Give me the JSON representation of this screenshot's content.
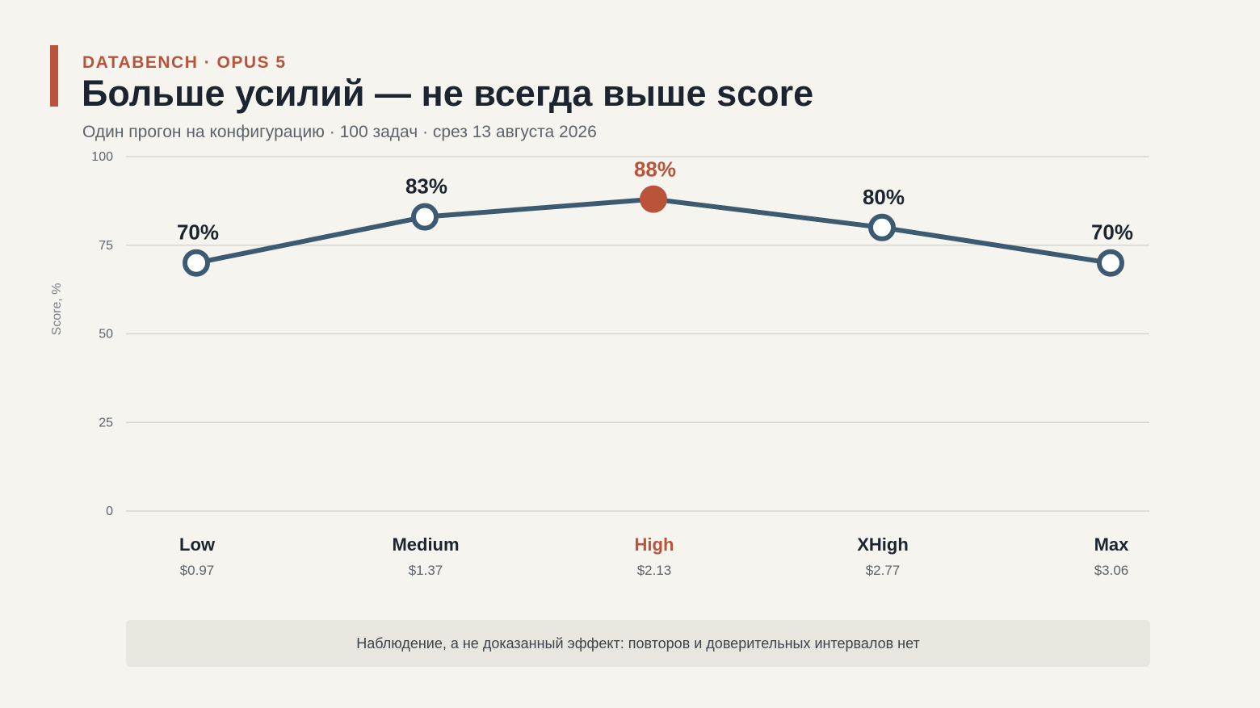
{
  "header": {
    "kicker": "DATABENCH · OPUS 5",
    "title": "Больше усилий — не всегда выше score",
    "subtitle": "Один прогон на конфигурацию · 100 задач · срез 13 августа 2026"
  },
  "chart_data": {
    "type": "line",
    "ylabel": "Score, %",
    "ylim": [
      0,
      100
    ],
    "yticks": [
      0,
      25,
      50,
      75,
      100
    ],
    "grid": true,
    "categories": [
      "Low",
      "Medium",
      "High",
      "XHigh",
      "Max"
    ],
    "costs": [
      "$0.97",
      "$1.37",
      "$2.13",
      "$2.77",
      "$3.06"
    ],
    "values": [
      70,
      83,
      88,
      80,
      70
    ],
    "value_labels": [
      "70%",
      "83%",
      "88%",
      "80%",
      "70%"
    ],
    "highlight_index": 2,
    "colors": {
      "line": "#3d5a73",
      "highlight": "#b9533a",
      "grid": "#d9d6d0",
      "text": "#1c2430",
      "muted": "#5c636b"
    }
  },
  "footnote": "Наблюдение, а не доказанный эффект: повторов и доверительных интервалов нет"
}
